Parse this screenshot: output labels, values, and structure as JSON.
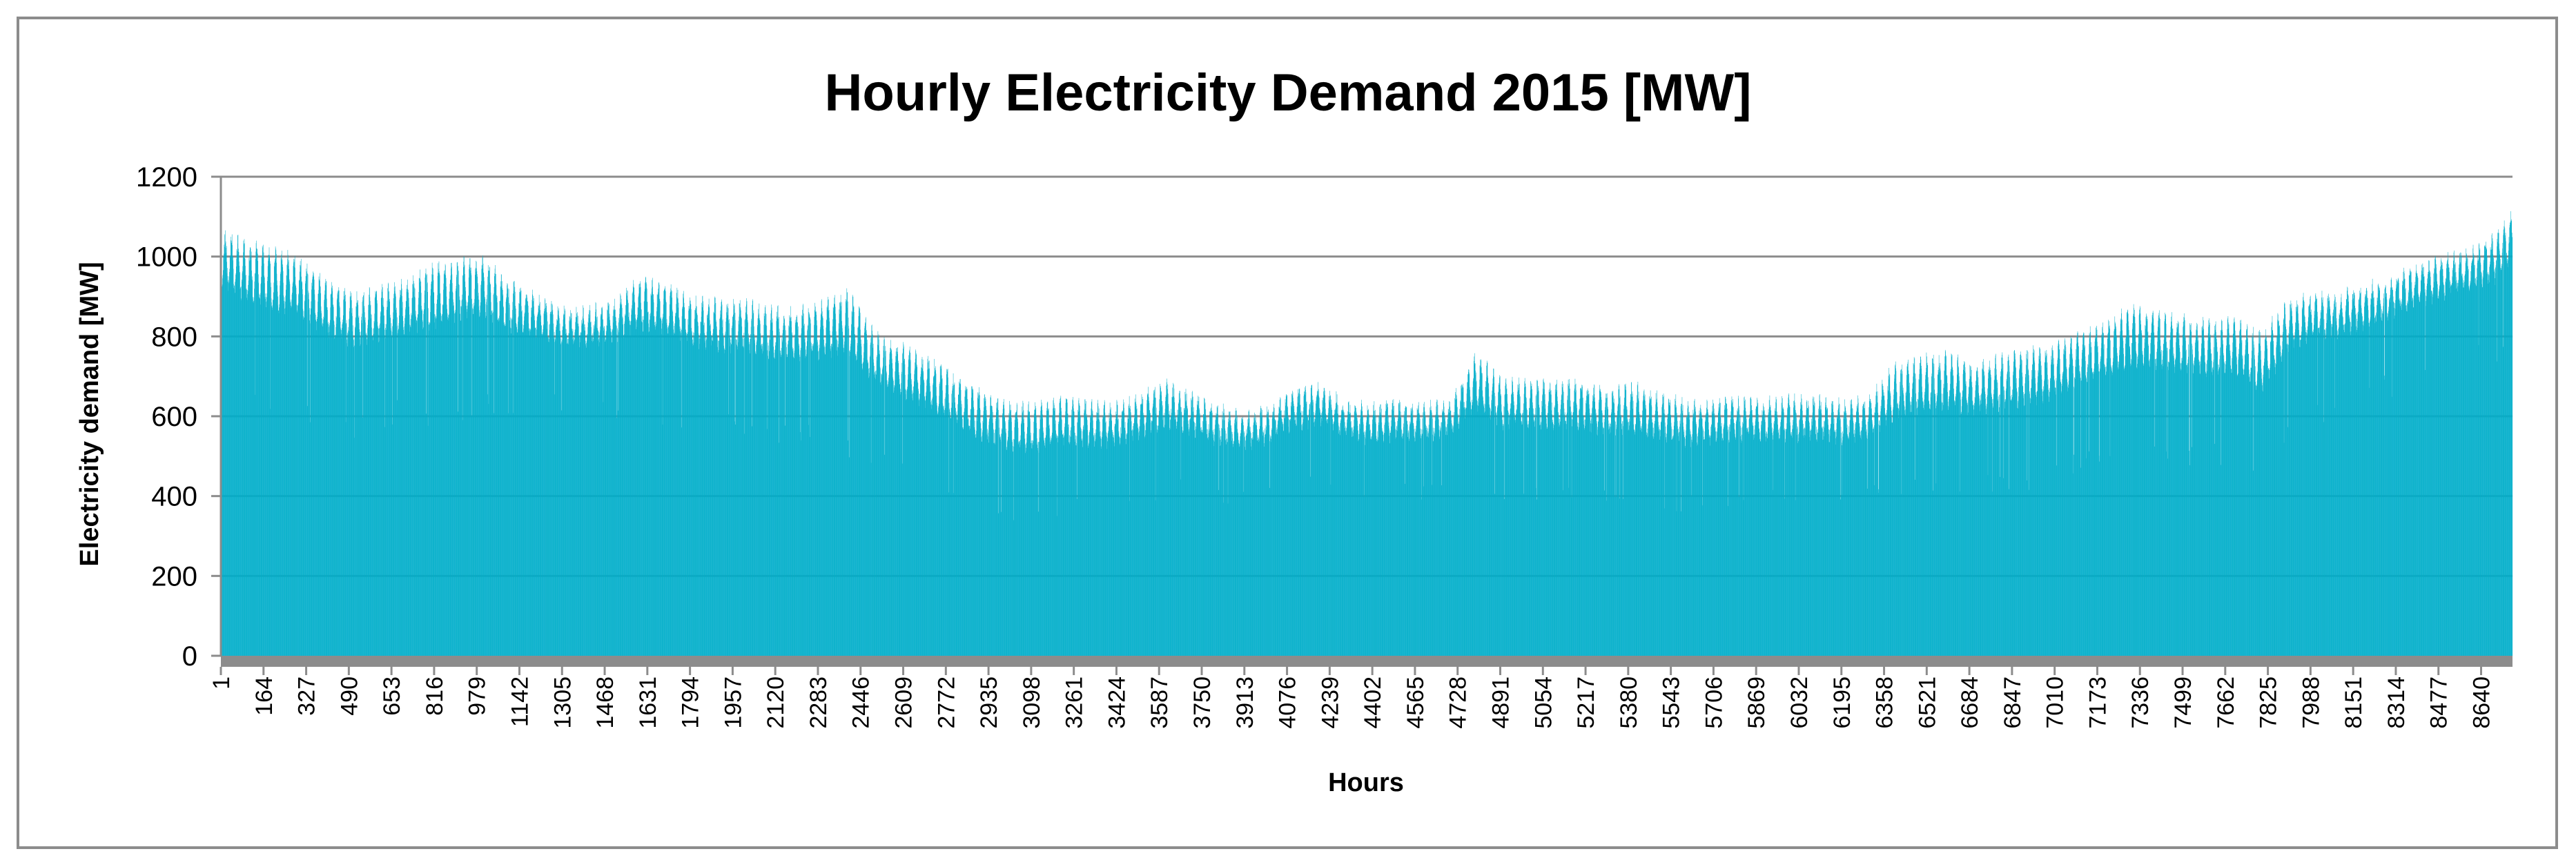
{
  "chart_data": {
    "type": "bar",
    "title": "Hourly Electricity Demand 2015 [MW]",
    "xlabel": "Hours",
    "ylabel": "Electricity demand [MW]",
    "ylim": [
      0,
      1200
    ],
    "yticks": [
      0,
      200,
      400,
      600,
      800,
      1000,
      1200
    ],
    "grid": true,
    "legend": "none",
    "bar_color": "#00AECA",
    "grid_color": "#8C8C8C",
    "hours_total": 8760,
    "x_tick_labels": [
      1,
      164,
      327,
      490,
      653,
      816,
      979,
      1142,
      1305,
      1468,
      1631,
      1794,
      1957,
      2120,
      2283,
      2446,
      2609,
      2772,
      2935,
      3098,
      3261,
      3424,
      3587,
      3750,
      3913,
      4076,
      4239,
      4402,
      4565,
      4728,
      4891,
      5054,
      5217,
      5380,
      5543,
      5706,
      5869,
      6032,
      6195,
      6358,
      6521,
      6684,
      6847,
      7010,
      7173,
      7336,
      7499,
      7662,
      7825,
      7988,
      8151,
      8314,
      8477,
      8640
    ],
    "envelope_hours": [
      1,
      100,
      200,
      300,
      400,
      500,
      600,
      700,
      800,
      900,
      1000,
      1100,
      1200,
      1300,
      1400,
      1500,
      1600,
      1700,
      1800,
      1900,
      2000,
      2100,
      2200,
      2300,
      2400,
      2500,
      2600,
      2700,
      2800,
      2900,
      3000,
      3100,
      3200,
      3300,
      3400,
      3500,
      3600,
      3700,
      3800,
      3900,
      4000,
      4100,
      4200,
      4300,
      4400,
      4500,
      4600,
      4700,
      4800,
      4900,
      5000,
      5100,
      5200,
      5300,
      5400,
      5500,
      5600,
      5700,
      5800,
      5900,
      6000,
      6100,
      6200,
      6300,
      6400,
      6500,
      6600,
      6700,
      6800,
      6900,
      7000,
      7100,
      7200,
      7300,
      7400,
      7500,
      7600,
      7700,
      7800,
      7900,
      8000,
      8100,
      8200,
      8300,
      8400,
      8500,
      8600,
      8700,
      8760
    ],
    "envelope_peak_mw": [
      1080,
      1050,
      1030,
      1010,
      960,
      920,
      930,
      950,
      990,
      1000,
      1010,
      950,
      920,
      880,
      880,
      900,
      960,
      940,
      910,
      900,
      900,
      880,
      880,
      900,
      930,
      820,
      790,
      760,
      720,
      680,
      650,
      640,
      660,
      650,
      640,
      660,
      700,
      670,
      640,
      620,
      630,
      680,
      690,
      650,
      640,
      650,
      640,
      650,
      770,
      700,
      700,
      700,
      700,
      680,
      690,
      670,
      650,
      650,
      660,
      650,
      660,
      660,
      650,
      660,
      740,
      760,
      770,
      740,
      760,
      780,
      790,
      820,
      840,
      890,
      880,
      860,
      850,
      860,
      820,
      900,
      920,
      920,
      940,
      960,
      990,
      1010,
      1030,
      1070,
      1130
    ],
    "envelope_low_mw": [
      780,
      720,
      700,
      700,
      650,
      640,
      660,
      680,
      640,
      680,
      700,
      680,
      700,
      700,
      700,
      700,
      690,
      680,
      660,
      640,
      640,
      620,
      620,
      600,
      580,
      560,
      520,
      500,
      460,
      410,
      400,
      380,
      400,
      420,
      430,
      440,
      460,
      470,
      450,
      440,
      460,
      480,
      480,
      470,
      450,
      460,
      460,
      480,
      470,
      460,
      460,
      450,
      450,
      440,
      440,
      430,
      420,
      430,
      440,
      440,
      440,
      440,
      430,
      450,
      460,
      470,
      470,
      480,
      480,
      480,
      500,
      540,
      560,
      560,
      560,
      560,
      560,
      560,
      500,
      620,
      680,
      700,
      720,
      760,
      790,
      800,
      820,
      820,
      830
    ]
  }
}
